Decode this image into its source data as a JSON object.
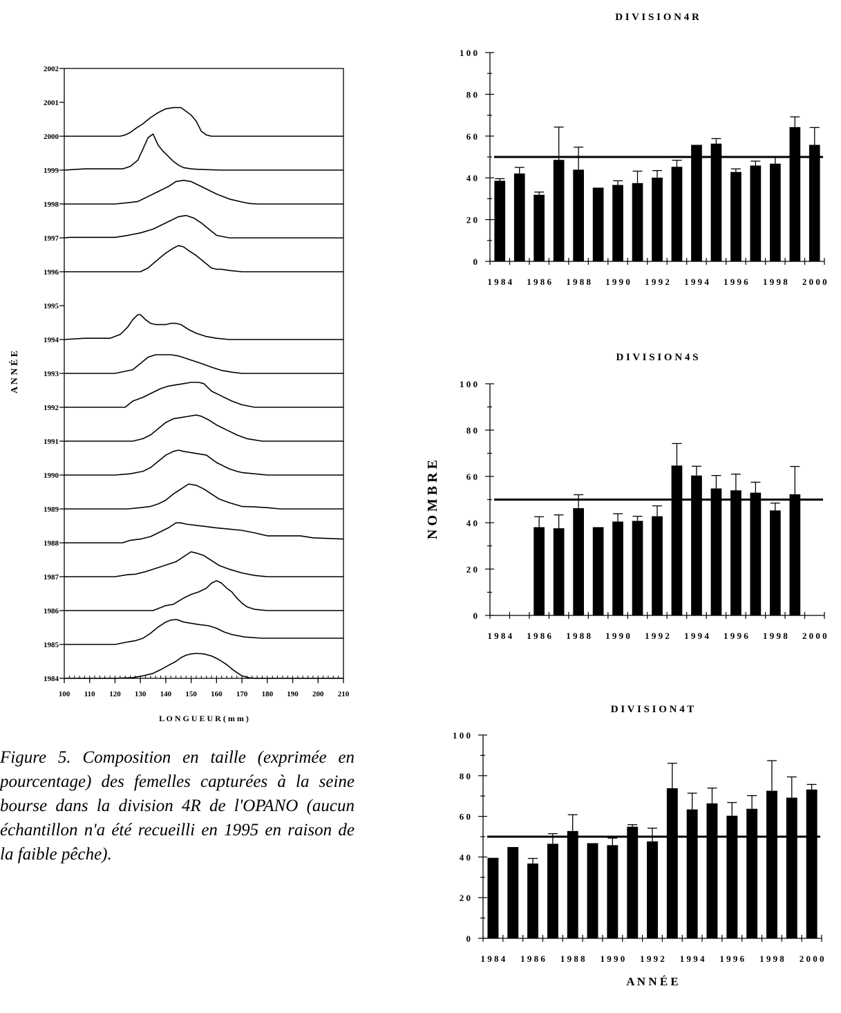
{
  "caption": "Figure 5. Composition en taille (exprimée en pourcentage) des femelles capturées à la seine bourse dans la division 4R de l'OPANO (aucun échantillon n'a été recueilli en 1995 en raison de la faible pêche).",
  "chart_data": [
    {
      "type": "line",
      "id": "size_composition",
      "ylabel": "ANNÉE",
      "xlabel": "LONGUEUR (mm)",
      "x_ticks": [
        100,
        110,
        120,
        130,
        140,
        150,
        160,
        170,
        180,
        190,
        200,
        210
      ],
      "y_ticks": [
        1984,
        1985,
        1986,
        1987,
        1988,
        1989,
        1990,
        1991,
        1992,
        1993,
        1994,
        1995,
        1996,
        1997,
        1998,
        1999,
        2000,
        2001,
        2002
      ],
      "xlim": [
        100,
        210
      ],
      "ylim": [
        1984,
        2002
      ],
      "note": "No sample in 1995",
      "series": [
        {
          "year": 1984,
          "x": [
            100,
            120,
            127,
            131,
            135,
            138,
            141,
            144,
            146,
            148,
            150,
            152,
            155,
            158,
            161,
            164,
            167,
            170,
            173,
            175,
            210
          ],
          "y": [
            0,
            0,
            0.03,
            0.1,
            0.2,
            0.35,
            0.52,
            0.68,
            0.83,
            0.93,
            0.98,
            1.0,
            0.98,
            0.9,
            0.75,
            0.55,
            0.3,
            0.1,
            0.02,
            0,
            0
          ]
        },
        {
          "year": 1985,
          "x": [
            100,
            120,
            125,
            128,
            131,
            134,
            137,
            140,
            142,
            144,
            145,
            147,
            150,
            153,
            157,
            160,
            163,
            166,
            171,
            178,
            210
          ],
          "y": [
            0,
            0,
            0.1,
            0.15,
            0.25,
            0.45,
            0.7,
            0.9,
            0.98,
            1.0,
            0.98,
            0.9,
            0.85,
            0.8,
            0.75,
            0.65,
            0.5,
            0.4,
            0.3,
            0.25,
            0.25
          ]
        },
        {
          "year": 1986,
          "x": [
            100,
            135,
            140,
            143,
            147,
            150,
            153,
            156,
            158,
            160,
            162,
            164,
            166,
            168,
            170,
            172,
            175,
            180,
            210
          ],
          "y": [
            0,
            0,
            0.2,
            0.25,
            0.5,
            0.65,
            0.75,
            0.9,
            1.1,
            1.2,
            1.1,
            0.9,
            0.75,
            0.5,
            0.3,
            0.15,
            0.05,
            0,
            0
          ]
        },
        {
          "year": 1987,
          "x": [
            100,
            120,
            125,
            128,
            132,
            135,
            138,
            141,
            144,
            147,
            150,
            152,
            155,
            158,
            161,
            165,
            170,
            175,
            180,
            210
          ],
          "y": [
            0,
            0,
            0.08,
            0.1,
            0.2,
            0.3,
            0.4,
            0.5,
            0.6,
            0.8,
            1.0,
            0.95,
            0.85,
            0.65,
            0.45,
            0.3,
            0.15,
            0.05,
            0,
            0
          ]
        },
        {
          "year": 1988,
          "x": [
            100,
            123,
            126,
            130,
            134,
            137,
            141,
            144,
            146,
            148,
            152,
            156,
            160,
            165,
            170,
            175,
            180,
            187,
            193,
            198,
            210
          ],
          "y": [
            0,
            0,
            0.1,
            0.15,
            0.25,
            0.4,
            0.6,
            0.8,
            0.8,
            0.75,
            0.7,
            0.65,
            0.6,
            0.55,
            0.5,
            0.4,
            0.28,
            0.28,
            0.28,
            0.2,
            0.15
          ]
        },
        {
          "year": 1989,
          "x": [
            100,
            125,
            130,
            134,
            137,
            140,
            143,
            146,
            149,
            152,
            155,
            158,
            161,
            165,
            170,
            175,
            180,
            185,
            190,
            195,
            200,
            210
          ],
          "y": [
            0,
            0,
            0.05,
            0.1,
            0.2,
            0.35,
            0.6,
            0.8,
            1.0,
            0.95,
            0.8,
            0.6,
            0.4,
            0.25,
            0.1,
            0.08,
            0.05,
            0,
            0,
            0,
            0,
            0
          ]
        },
        {
          "year": 1990,
          "x": [
            100,
            120,
            126,
            131,
            134,
            137,
            140,
            143,
            145,
            147,
            150,
            153,
            156,
            160,
            165,
            168,
            170,
            175,
            180,
            210
          ],
          "y": [
            0,
            0,
            0.05,
            0.15,
            0.3,
            0.55,
            0.8,
            0.95,
            1.0,
            0.95,
            0.9,
            0.85,
            0.8,
            0.5,
            0.25,
            0.15,
            0.1,
            0.05,
            0,
            0
          ]
        },
        {
          "year": 1991,
          "x": [
            100,
            127,
            131,
            134,
            137,
            140,
            143,
            146,
            149,
            152,
            154,
            157,
            160,
            164,
            168,
            172,
            178,
            210
          ],
          "y": [
            0,
            0,
            0.1,
            0.25,
            0.5,
            0.75,
            0.9,
            0.95,
            1.0,
            1.05,
            1.0,
            0.85,
            0.65,
            0.45,
            0.25,
            0.1,
            0,
            0
          ]
        },
        {
          "year": 1992,
          "x": [
            100,
            124,
            127,
            131,
            135,
            138,
            141,
            144,
            147,
            150,
            153,
            155,
            158,
            162,
            166,
            170,
            175,
            210
          ],
          "y": [
            0,
            0,
            0.25,
            0.4,
            0.6,
            0.75,
            0.85,
            0.9,
            0.95,
            1.0,
            1.0,
            0.95,
            0.65,
            0.45,
            0.25,
            0.1,
            0,
            0
          ]
        },
        {
          "year": 1993,
          "x": [
            100,
            120,
            127,
            130,
            133,
            136,
            139,
            142,
            145,
            148,
            151,
            154,
            158,
            162,
            166,
            170,
            210
          ],
          "y": [
            0,
            0,
            0.15,
            0.4,
            0.65,
            0.75,
            0.75,
            0.75,
            0.7,
            0.6,
            0.5,
            0.4,
            0.25,
            0.12,
            0.05,
            0,
            0
          ]
        },
        {
          "year": 1994,
          "x": [
            100,
            108,
            113,
            118,
            122,
            125,
            127,
            129,
            130,
            132,
            134,
            136,
            138,
            140,
            142,
            144,
            146,
            149,
            152,
            156,
            160,
            165,
            210
          ],
          "y": [
            0,
            0.05,
            0.05,
            0.05,
            0.2,
            0.5,
            0.8,
            1.0,
            1.0,
            0.8,
            0.65,
            0.6,
            0.6,
            0.6,
            0.65,
            0.65,
            0.6,
            0.4,
            0.25,
            0.12,
            0.05,
            0,
            0
          ]
        },
        {
          "year": 1996,
          "x": [
            100,
            130,
            133,
            137,
            140,
            143,
            145,
            147,
            149,
            152,
            155,
            158,
            160,
            162,
            165,
            170,
            210
          ],
          "y": [
            0,
            0,
            0.15,
            0.5,
            0.75,
            0.95,
            1.05,
            1.0,
            0.85,
            0.65,
            0.4,
            0.15,
            0.1,
            0.1,
            0.05,
            0,
            0
          ]
        },
        {
          "year": 1997,
          "x": [
            100,
            102,
            107,
            115,
            120,
            125,
            130,
            135,
            140,
            145,
            148,
            151,
            154,
            157,
            160,
            165,
            210
          ],
          "y": [
            0,
            0.02,
            0.02,
            0.02,
            0.02,
            0.1,
            0.2,
            0.35,
            0.6,
            0.85,
            0.9,
            0.8,
            0.6,
            0.35,
            0.1,
            0,
            0
          ]
        },
        {
          "year": 1998,
          "x": [
            100,
            120,
            125,
            129,
            133,
            137,
            141,
            144,
            147,
            150,
            153,
            156,
            160,
            165,
            170,
            173,
            176,
            210
          ],
          "y": [
            0,
            0,
            0.05,
            0.1,
            0.3,
            0.5,
            0.7,
            0.9,
            0.95,
            0.9,
            0.75,
            0.6,
            0.4,
            0.2,
            0.08,
            0.02,
            0,
            0
          ]
        },
        {
          "year": 1999,
          "x": [
            100,
            103,
            108,
            113,
            118,
            123,
            126,
            129,
            131,
            133,
            135,
            137,
            139,
            141,
            143,
            145,
            147,
            150,
            153,
            156,
            162,
            210
          ],
          "y": [
            0,
            0.02,
            0.05,
            0.05,
            0.05,
            0.05,
            0.15,
            0.4,
            0.85,
            1.3,
            1.45,
            1.0,
            0.75,
            0.55,
            0.35,
            0.2,
            0.1,
            0.05,
            0.03,
            0.02,
            0,
            0
          ]
        },
        {
          "year": 2000,
          "x": [
            100,
            122,
            124,
            126,
            128,
            131,
            134,
            137,
            140,
            143,
            146,
            148,
            150,
            152,
            154,
            156,
            158,
            162,
            210
          ],
          "y": [
            0,
            0,
            0.05,
            0.15,
            0.3,
            0.5,
            0.75,
            0.95,
            1.1,
            1.15,
            1.15,
            1.0,
            0.85,
            0.6,
            0.2,
            0.05,
            0,
            0,
            0
          ]
        }
      ]
    },
    {
      "type": "bar",
      "id": "div_4r",
      "title": "DIVISION 4R",
      "ylim": [
        0,
        100
      ],
      "y_ticks": [
        0,
        20,
        40,
        60,
        80,
        100
      ],
      "x_ticks": [
        1984,
        1986,
        1988,
        1990,
        1992,
        1994,
        1996,
        1998,
        2000
      ],
      "reference_line": 50,
      "categories": [
        1984,
        1985,
        1986,
        1987,
        1988,
        1989,
        1990,
        1991,
        1992,
        1993,
        1994,
        1995,
        1996,
        1997,
        1998,
        1999,
        2000
      ],
      "values": [
        38.6,
        42.1,
        31.9,
        48.6,
        43.9,
        35.3,
        36.6,
        37.5,
        40.1,
        45.3,
        55.8,
        56.4,
        42.8,
        45.9,
        46.8,
        64.3,
        55.8
      ],
      "errors": [
        1.0,
        2.9,
        1.3,
        15.7,
        10.8,
        0,
        2.0,
        5.7,
        3.4,
        3.1,
        0,
        2.4,
        1.5,
        2.1,
        3.0,
        4.9,
        8.3
      ]
    },
    {
      "type": "bar",
      "id": "div_4s",
      "title": "DIVISION 4S",
      "ylabel": "NOMBRE",
      "ylim": [
        0,
        100
      ],
      "y_ticks": [
        0,
        20,
        40,
        60,
        80,
        100
      ],
      "x_ticks": [
        1984,
        1986,
        1988,
        1990,
        1992,
        1994,
        1996,
        1998,
        2000
      ],
      "reference_line": 50,
      "categories": [
        1986,
        1987,
        1988,
        1989,
        1990,
        1991,
        1992,
        1993,
        1994,
        1995,
        1996,
        1997,
        1998,
        1999
      ],
      "values": [
        38.1,
        37.6,
        46.3,
        38.1,
        40.5,
        40.8,
        42.8,
        64.7,
        60.4,
        54.8,
        54.0,
        53.0,
        45.3,
        52.3
      ],
      "errors": [
        4.5,
        5.8,
        5.8,
        0,
        3.4,
        2.0,
        4.5,
        9.5,
        4.0,
        5.6,
        7.0,
        4.5,
        3.2,
        12.0
      ]
    },
    {
      "type": "bar",
      "id": "div_4t",
      "title": "DIVISION 4T",
      "xlabel": "ANNÉE",
      "ylim": [
        0,
        100
      ],
      "y_ticks": [
        0,
        20,
        40,
        60,
        80,
        100
      ],
      "x_ticks": [
        1984,
        1986,
        1988,
        1990,
        1992,
        1994,
        1996,
        1998,
        2000
      ],
      "reference_line": 50,
      "categories": [
        1984,
        1985,
        1986,
        1987,
        1988,
        1989,
        1990,
        1991,
        1992,
        1993,
        1994,
        1995,
        1996,
        1997,
        1998,
        1999,
        2000
      ],
      "values": [
        39.6,
        44.9,
        36.8,
        46.5,
        52.8,
        46.8,
        45.8,
        54.9,
        47.7,
        73.8,
        63.4,
        66.4,
        60.3,
        63.7,
        72.6,
        69.2,
        73.2
      ],
      "errors": [
        0,
        0,
        2.5,
        5.0,
        8.0,
        0,
        3.5,
        1.0,
        6.5,
        12.3,
        8.0,
        7.5,
        6.5,
        6.5,
        14.8,
        10.2,
        2.5
      ]
    }
  ]
}
